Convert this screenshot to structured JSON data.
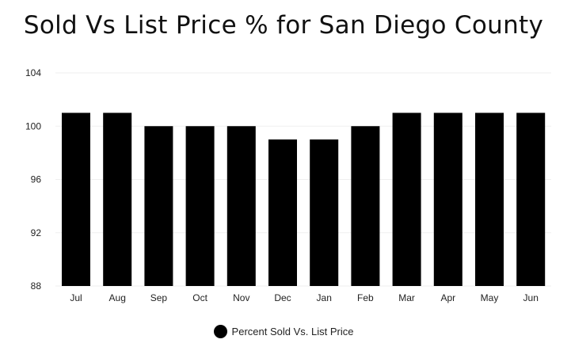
{
  "chart_data": {
    "type": "bar",
    "title": "Sold Vs List Price % for San Diego County",
    "categories": [
      "Jul",
      "Aug",
      "Sep",
      "Oct",
      "Nov",
      "Dec",
      "Jan",
      "Feb",
      "Mar",
      "Apr",
      "May",
      "Jun"
    ],
    "series": [
      {
        "name": "Percent Sold Vs. List Price",
        "values": [
          101,
          101,
          100,
          100,
          100,
          99,
          99,
          100,
          101,
          101,
          101,
          101
        ]
      }
    ],
    "ylim": [
      88,
      104
    ],
    "yticks": [
      88,
      92,
      96,
      100,
      104
    ],
    "grid": true,
    "legend": "bottom",
    "bar_color": "#000000"
  }
}
